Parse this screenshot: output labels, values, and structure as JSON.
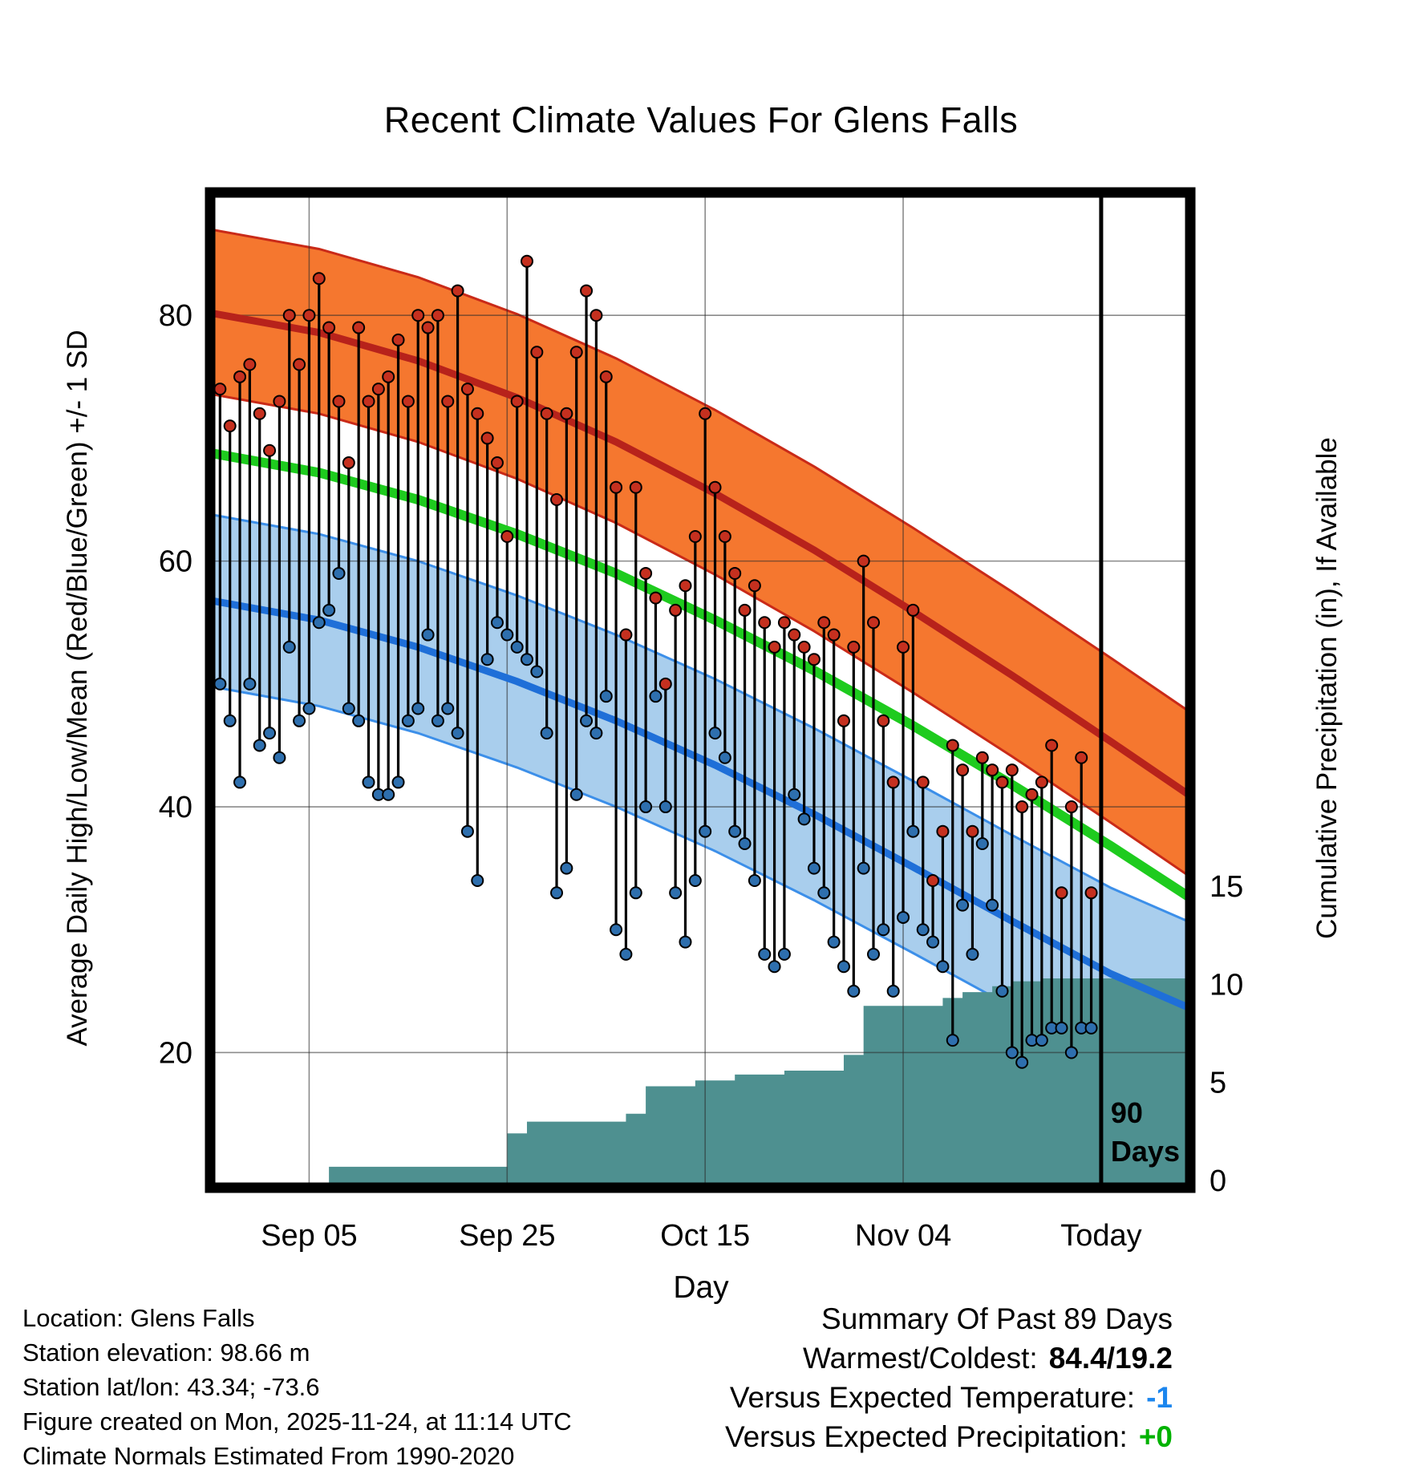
{
  "chart_data": {
    "type": "line",
    "subtype": "daily-climate-summary",
    "title": "Recent Climate Values For Glens Falls",
    "xlabel": "Day",
    "ylabel_left": "Average Daily High/Low/Mean (Red/Blue/Green) +/- 1 SD",
    "ylabel_right": "Cumulative Precipitation (in), If Available",
    "x_ticks": [
      {
        "day": 9,
        "label": "Sep 05"
      },
      {
        "day": 29,
        "label": "Sep 25"
      },
      {
        "day": 49,
        "label": "Oct 15"
      },
      {
        "day": 69,
        "label": "Nov 04"
      },
      {
        "day": 89,
        "label": "Today"
      }
    ],
    "x_range": [
      -1,
      98
    ],
    "y_left_ticks": [
      20,
      40,
      60,
      80
    ],
    "y_left_range": [
      9,
      90
    ],
    "y_right_ticks": [
      0,
      5,
      10,
      15
    ],
    "precip_unit": "in",
    "today_day": 89,
    "period_label": [
      "90",
      "Days"
    ],
    "grid": true,
    "legend": "none",
    "normals": {
      "days": [
        -1,
        10,
        20,
        30,
        40,
        50,
        60,
        70,
        80,
        90,
        98
      ],
      "high_upper": [
        87.0,
        85.4,
        83.1,
        80.1,
        76.5,
        72.3,
        67.7,
        62.7,
        57.5,
        52.1,
        47.7
      ],
      "high_mean": [
        80.2,
        78.6,
        76.3,
        73.3,
        69.7,
        65.5,
        60.9,
        55.9,
        50.7,
        45.3,
        40.9
      ],
      "high_lower": [
        73.6,
        72.0,
        69.7,
        66.7,
        63.1,
        58.9,
        54.3,
        49.3,
        44.1,
        38.7,
        34.3
      ],
      "mean": [
        68.8,
        67.2,
        65.0,
        62.2,
        59.0,
        55.2,
        51.1,
        46.6,
        41.8,
        36.8,
        32.6
      ],
      "low_upper": [
        63.8,
        62.2,
        60.0,
        57.2,
        54.0,
        50.4,
        46.4,
        42.1,
        37.7,
        33.4,
        30.6
      ],
      "low_mean": [
        56.8,
        55.2,
        53.0,
        50.2,
        47.0,
        43.4,
        39.4,
        35.1,
        30.7,
        26.4,
        23.6
      ],
      "low_lower": [
        49.8,
        48.2,
        46.0,
        43.2,
        40.0,
        36.4,
        32.4,
        28.1,
        23.7,
        19.4,
        16.6
      ]
    },
    "daily": {
      "highs": [
        74,
        71,
        75,
        76,
        72,
        69,
        73,
        80,
        76,
        80,
        83,
        79,
        73,
        68,
        79,
        73,
        74,
        75,
        78,
        73,
        80,
        79,
        80,
        73,
        82,
        74,
        72,
        70,
        68,
        62,
        73,
        84.4,
        77,
        72,
        65,
        72,
        77,
        82,
        80,
        75,
        66,
        54,
        66,
        59,
        57,
        50,
        56,
        58,
        62,
        72,
        66,
        62,
        59,
        56,
        58,
        55,
        53,
        55,
        54,
        53,
        52,
        55,
        54,
        47,
        53,
        60,
        55,
        47,
        42,
        53,
        56,
        42,
        34,
        38,
        45,
        43,
        38,
        44,
        43,
        42,
        43,
        40,
        41,
        42,
        45,
        33,
        40,
        44,
        33
      ],
      "lows": [
        50,
        47,
        42,
        50,
        45,
        46,
        44,
        53,
        47,
        48,
        55,
        56,
        59,
        48,
        47,
        42,
        41,
        41,
        42,
        47,
        48,
        54,
        47,
        48,
        46,
        38,
        34,
        52,
        55,
        54,
        53,
        52,
        51,
        46,
        33,
        35,
        41,
        47,
        46,
        49,
        30,
        28,
        33,
        40,
        49,
        40,
        33,
        29,
        34,
        38,
        46,
        44,
        38,
        37,
        34,
        28,
        27,
        28,
        41,
        39,
        35,
        33,
        29,
        27,
        25,
        35,
        28,
        30,
        25,
        31,
        38,
        30,
        29,
        27,
        21,
        32,
        28,
        37,
        32,
        25,
        20,
        19.2,
        21,
        21,
        22,
        22,
        20,
        22,
        22
      ]
    },
    "cum_precip_steps": [
      [
        11,
        0.7
      ],
      [
        29,
        2.4
      ],
      [
        31,
        3.0
      ],
      [
        41,
        3.4
      ],
      [
        43,
        4.8
      ],
      [
        48,
        5.1
      ],
      [
        52,
        5.4
      ],
      [
        57,
        5.6
      ],
      [
        63,
        6.4
      ],
      [
        65,
        8.9
      ],
      [
        73,
        9.3
      ],
      [
        75,
        9.6
      ],
      [
        78,
        9.9
      ],
      [
        80,
        10.15
      ],
      [
        83,
        10.3
      ]
    ],
    "colors": {
      "high_band": "#F5772F",
      "high_edge": "#C92A18",
      "high_line": "#B7221B",
      "low_band": "#A9CEED",
      "low_edge": "#3C8FE9",
      "low_line": "#1F6FD8",
      "mean_line": "#1ECB1E",
      "precip_fill": "#4E9090",
      "bar": "#000000",
      "high_dot": "#C5301F",
      "low_dot": "#2E6FAE",
      "grid": "#2B2B2B",
      "today_line": "#000000"
    }
  },
  "footer": {
    "left_lines": [
      "Location: Glens Falls",
      "Station elevation: 98.66 m",
      "Station lat/lon: 43.34; -73.6",
      "Figure created on Mon, 2025-11-24, at 11:14 UTC",
      "Climate Normals Estimated From 1990-2020"
    ]
  },
  "summary": {
    "title": "Summary Of Past 89 Days",
    "rows": [
      {
        "label": "Warmest/Coldest:",
        "value": "84.4/19.2",
        "color": "#000000"
      },
      {
        "label": "Versus Expected Temperature:",
        "value": "-1",
        "color": "#1C86EE"
      },
      {
        "label": "Versus Expected Precipitation:",
        "value": "+0",
        "color": "#00B200"
      }
    ]
  }
}
